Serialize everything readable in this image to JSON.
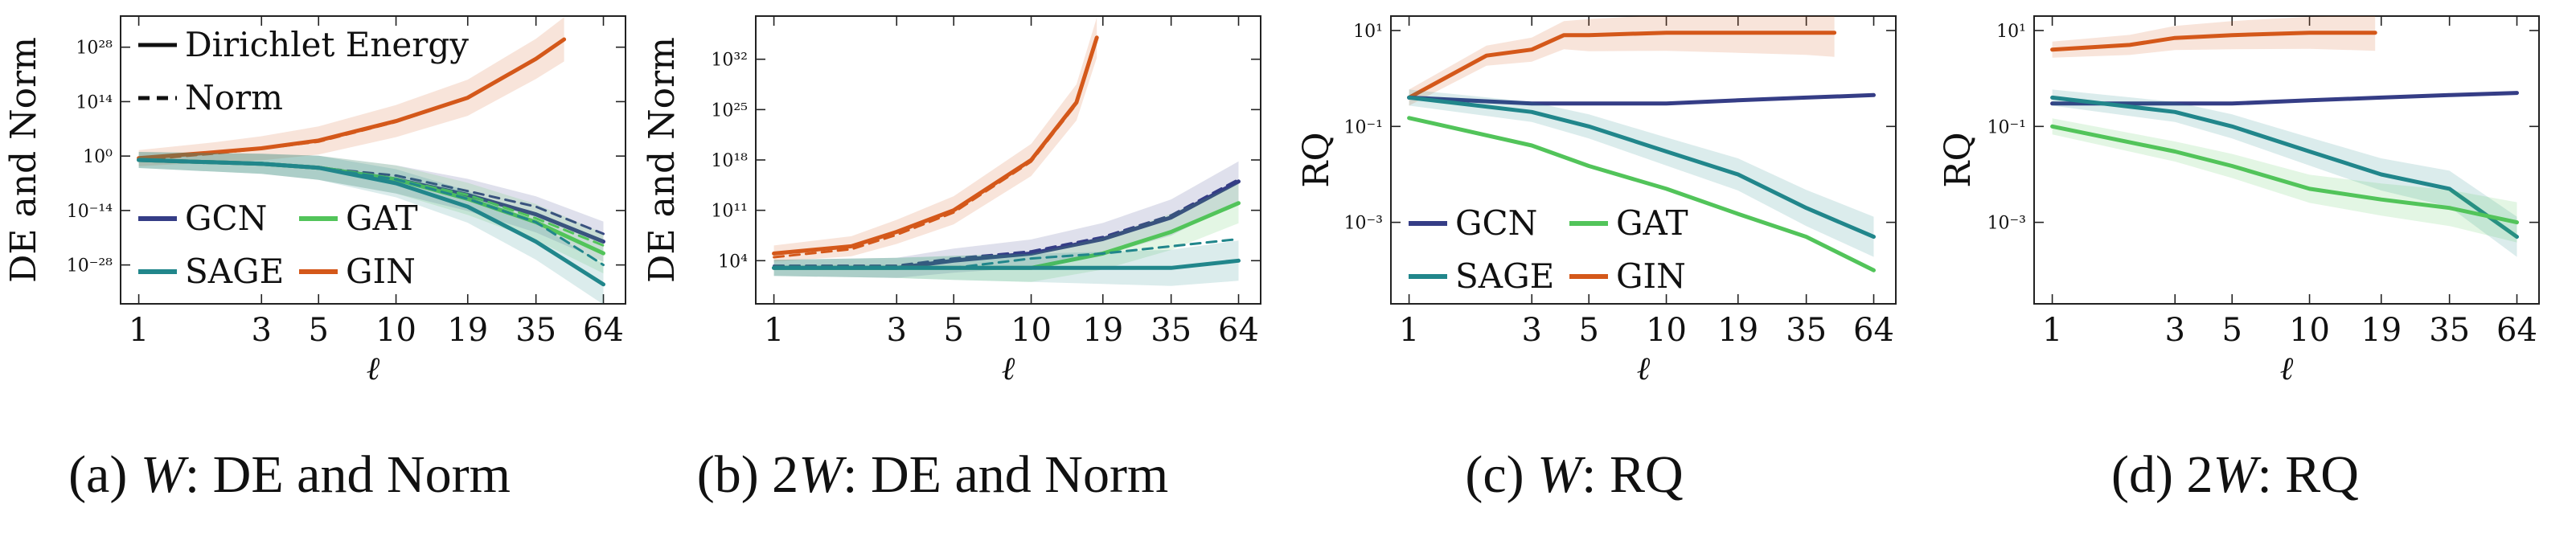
{
  "colors": {
    "GCN": "#353d86",
    "GAT": "#52c45a",
    "SAGE": "#21868b",
    "GIN": "#d4581a"
  },
  "chart_data": [
    {
      "type": "line",
      "caption": {
        "label": "(a) ",
        "symbol": "W",
        "rest": ": DE and Norm"
      },
      "xlabel": "ℓ",
      "ylabel": "DE and Norm",
      "xscale": "log",
      "yscale": "log",
      "xlim": [
        0.85,
        78
      ],
      "ylim": [
        1e-38,
        1e+36
      ],
      "xticks": [
        1,
        3,
        5,
        10,
        19,
        35,
        64
      ],
      "xtick_labels": [
        "1",
        "3",
        "5",
        "10",
        "19",
        "35",
        "64"
      ],
      "yticks": [
        1e-28,
        1e-14,
        1,
        100000000000000.0,
        1e+28
      ],
      "ytick_labels": [
        "10⁻²⁸",
        "10⁻¹⁴",
        "10⁰",
        "10¹⁴",
        "10²⁸"
      ],
      "legend_lines": [
        {
          "label": "Dirichlet Energy",
          "style": "solid"
        },
        {
          "label": "Norm",
          "style": "dashed"
        }
      ],
      "legend_models": [
        "GCN",
        "GAT",
        "SAGE",
        "GIN"
      ],
      "legend_position": "left",
      "series": [
        {
          "name": "GIN",
          "style": "solid",
          "band": true,
          "x": [
            1,
            2,
            3,
            5,
            10,
            19,
            35,
            45
          ],
          "y": [
            0.3,
            10,
            100.0,
            10000.0,
            1000000000.0,
            1000000000000000.0,
            1e+25,
            1e+30
          ]
        },
        {
          "name": "GIN",
          "style": "dashed",
          "band": false,
          "x": [
            1,
            2,
            3,
            5,
            10,
            19,
            35,
            45
          ],
          "y": [
            0.1,
            5,
            80.0,
            5000.0,
            600000000.0,
            800000000000000.0,
            8e+24,
            8e+29
          ]
        },
        {
          "name": "GCN",
          "style": "solid",
          "band": true,
          "x": [
            1,
            3,
            5,
            10,
            19,
            35,
            64
          ],
          "y": [
            0.1,
            0.01,
            0.001,
            1e-06,
            1e-10,
            1e-15,
            1e-22
          ]
        },
        {
          "name": "GCN",
          "style": "dashed",
          "band": false,
          "x": [
            1,
            3,
            5,
            10,
            19,
            35,
            64
          ],
          "y": [
            0.1,
            0.01,
            0.001,
            1e-05,
            1e-09,
            1e-13,
            1e-20
          ]
        },
        {
          "name": "GAT",
          "style": "solid",
          "band": true,
          "x": [
            1,
            3,
            5,
            10,
            19,
            35,
            64
          ],
          "y": [
            0.1,
            0.01,
            0.001,
            1e-06,
            1e-11,
            1e-17,
            1e-25
          ]
        },
        {
          "name": "GAT",
          "style": "dashed",
          "band": false,
          "x": [
            1,
            3,
            5,
            10,
            19,
            35,
            64
          ],
          "y": [
            0.1,
            0.01,
            0.001,
            1e-06,
            1e-10,
            1e-16,
            1e-23
          ]
        },
        {
          "name": "SAGE",
          "style": "solid",
          "band": true,
          "x": [
            1,
            3,
            5,
            10,
            19,
            35,
            64
          ],
          "y": [
            0.1,
            0.01,
            0.001,
            1e-07,
            1e-13,
            1e-22,
            1e-33
          ]
        },
        {
          "name": "SAGE",
          "style": "dashed",
          "band": false,
          "x": [
            1,
            3,
            5,
            10,
            19,
            35,
            64
          ],
          "y": [
            0.1,
            0.01,
            0.001,
            1e-06,
            1e-11,
            1e-17,
            1e-28
          ]
        }
      ]
    },
    {
      "type": "line",
      "caption": {
        "label": "(b) 2",
        "symbol": "W",
        "rest": ": DE and Norm"
      },
      "xlabel": "ℓ",
      "ylabel": "DE and Norm",
      "xscale": "log",
      "yscale": "log",
      "xlim": [
        0.85,
        78
      ],
      "ylim": [
        0.01,
        1e+38
      ],
      "xticks": [
        1,
        3,
        5,
        10,
        19,
        35,
        64
      ],
      "xtick_labels": [
        "1",
        "3",
        "5",
        "10",
        "19",
        "35",
        "64"
      ],
      "yticks": [
        10000.0,
        100000000000.0,
        1e+18,
        1e+25,
        1e+32
      ],
      "ytick_labels": [
        "10⁴",
        "10¹¹",
        "10¹⁸",
        "10²⁵",
        "10³²"
      ],
      "series": [
        {
          "name": "GIN",
          "style": "solid",
          "band": true,
          "x": [
            1,
            2,
            3,
            5,
            10,
            15,
            18
          ],
          "y": [
            100000.0,
            1000000.0,
            100000000.0,
            100000000000.0,
            1e+18,
            1e+26,
            1e+35
          ]
        },
        {
          "name": "GIN",
          "style": "dashed",
          "band": false,
          "x": [
            1,
            2,
            3,
            5,
            10,
            15,
            18
          ],
          "y": [
            30000.0,
            400000.0,
            40000000.0,
            50000000000.0,
            6e+17,
            6e+25,
            6e+34
          ]
        },
        {
          "name": "GCN",
          "style": "solid",
          "band": true,
          "x": [
            1,
            3,
            5,
            10,
            19,
            35,
            64
          ],
          "y": [
            1000.0,
            1000.0,
            10000.0,
            100000.0,
            10000000.0,
            10000000000.0,
            1000000000000000.0
          ]
        },
        {
          "name": "GCN",
          "style": "dashed",
          "band": false,
          "x": [
            1,
            3,
            5,
            10,
            19,
            35,
            64
          ],
          "y": [
            2000.0,
            2000.0,
            20000.0,
            200000.0,
            20000000.0,
            20000000000.0,
            2000000000000000.0
          ]
        },
        {
          "name": "GAT",
          "style": "solid",
          "band": true,
          "x": [
            1,
            3,
            5,
            10,
            19,
            35,
            64
          ],
          "y": [
            1000.0,
            1000.0,
            1000.0,
            1000.0,
            100000.0,
            100000000.0,
            1000000000000.0
          ]
        },
        {
          "name": "GAT",
          "style": "dashed",
          "band": false,
          "x": [
            1,
            3,
            5,
            10,
            19,
            35,
            64
          ],
          "y": [
            1000.0,
            1000.0,
            1000.0,
            1000.0,
            100000.0,
            100000000.0,
            1000000000000.0
          ]
        },
        {
          "name": "SAGE",
          "style": "solid",
          "band": true,
          "x": [
            1,
            3,
            5,
            10,
            19,
            35,
            64
          ],
          "y": [
            1000.0,
            1000.0,
            1000.0,
            1000.0,
            1000.0,
            1000.0,
            10000.0
          ]
        },
        {
          "name": "SAGE",
          "style": "dashed",
          "band": false,
          "x": [
            1,
            3,
            5,
            10,
            19,
            35,
            64
          ],
          "y": [
            1000.0,
            1000.0,
            1000.0,
            20000.0,
            100000.0,
            1000000.0,
            10000000.0
          ]
        }
      ]
    },
    {
      "type": "line",
      "caption": {
        "label": "(c) ",
        "symbol": "W",
        "rest": ": RQ"
      },
      "xlabel": "ℓ",
      "ylabel": "RQ",
      "xscale": "log",
      "yscale": "log",
      "xlim": [
        0.85,
        78
      ],
      "ylim": [
        2e-05,
        20.0
      ],
      "xticks": [
        1,
        3,
        5,
        10,
        19,
        35,
        64
      ],
      "xtick_labels": [
        "1",
        "3",
        "5",
        "10",
        "19",
        "35",
        "64"
      ],
      "yticks": [
        0.001,
        0.1,
        10
      ],
      "ytick_labels": [
        "10⁻³",
        "10⁻¹",
        "10¹"
      ],
      "legend_models": [
        "GCN",
        "GAT",
        "SAGE",
        "GIN"
      ],
      "legend_position": "lower-left",
      "series": [
        {
          "name": "GIN",
          "style": "solid",
          "band": true,
          "x": [
            1,
            2,
            3,
            4,
            5,
            10,
            19,
            35,
            45
          ],
          "y": [
            0.4,
            3,
            4,
            8,
            8,
            9,
            9,
            9,
            9
          ]
        },
        {
          "name": "GCN",
          "style": "solid",
          "band": false,
          "x": [
            1,
            3,
            5,
            10,
            19,
            35,
            64
          ],
          "y": [
            0.4,
            0.3,
            0.3,
            0.3,
            0.35,
            0.4,
            0.45
          ]
        },
        {
          "name": "SAGE",
          "style": "solid",
          "band": true,
          "x": [
            1,
            3,
            5,
            10,
            19,
            35,
            64
          ],
          "y": [
            0.4,
            0.2,
            0.1,
            0.03,
            0.01,
            0.002,
            0.0005
          ]
        },
        {
          "name": "GAT",
          "style": "solid",
          "band": false,
          "x": [
            1,
            3,
            5,
            10,
            19,
            35,
            64
          ],
          "y": [
            0.15,
            0.04,
            0.015,
            0.005,
            0.0015,
            0.0005,
            0.0001
          ]
        }
      ]
    },
    {
      "type": "line",
      "caption": {
        "label": "(d) 2",
        "symbol": "W",
        "rest": ": RQ"
      },
      "xlabel": "ℓ",
      "ylabel": "RQ",
      "xscale": "log",
      "yscale": "log",
      "xlim": [
        0.85,
        78
      ],
      "ylim": [
        2e-05,
        20.0
      ],
      "xticks": [
        1,
        3,
        5,
        10,
        19,
        35,
        64
      ],
      "xtick_labels": [
        "1",
        "3",
        "5",
        "10",
        "19",
        "35",
        "64"
      ],
      "yticks": [
        0.001,
        0.1,
        10
      ],
      "ytick_labels": [
        "10⁻³",
        "10⁻¹",
        "10¹"
      ],
      "series": [
        {
          "name": "GIN",
          "style": "solid",
          "band": true,
          "x": [
            1,
            2,
            3,
            5,
            10,
            18
          ],
          "y": [
            4,
            5,
            7,
            8,
            9,
            9
          ]
        },
        {
          "name": "GCN",
          "style": "solid",
          "band": false,
          "x": [
            1,
            3,
            5,
            10,
            19,
            35,
            64
          ],
          "y": [
            0.3,
            0.3,
            0.3,
            0.35,
            0.4,
            0.45,
            0.5
          ]
        },
        {
          "name": "SAGE",
          "style": "solid",
          "band": true,
          "x": [
            1,
            3,
            5,
            10,
            19,
            35,
            64
          ],
          "y": [
            0.4,
            0.2,
            0.1,
            0.03,
            0.01,
            0.005,
            0.0005
          ]
        },
        {
          "name": "GAT",
          "style": "solid",
          "band": true,
          "x": [
            1,
            3,
            5,
            10,
            19,
            35,
            64
          ],
          "y": [
            0.1,
            0.03,
            0.015,
            0.005,
            0.003,
            0.002,
            0.001
          ]
        }
      ]
    }
  ]
}
